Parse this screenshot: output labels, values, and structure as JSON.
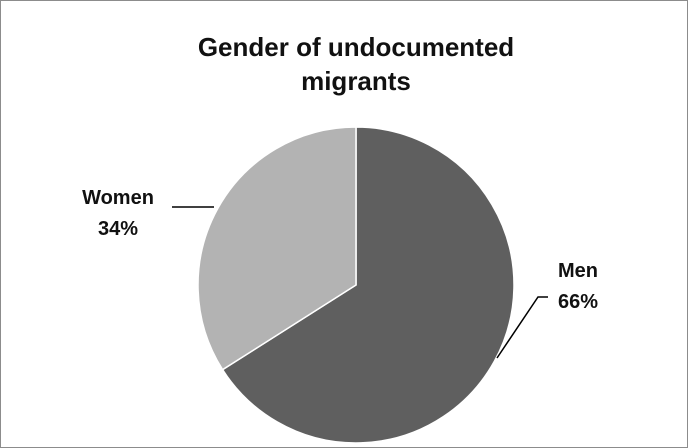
{
  "chart_data": {
    "type": "pie",
    "title_lines": [
      "Gender of undocumented",
      "migrants"
    ],
    "slices": [
      {
        "label": "Men",
        "value": 66,
        "value_text": "66%",
        "color": "#5f5f5f"
      },
      {
        "label": "Women",
        "value": 34,
        "value_text": "34%",
        "color": "#b3b3b3"
      }
    ],
    "start_angle_deg": 0,
    "direction": "clockwise",
    "legend": "none",
    "data_labels": "outside-with-leader-lines",
    "colors": {
      "background": "#ffffff",
      "border": "#8c8c8c",
      "text": "#111111",
      "slice_border": "#ffffff",
      "leader_line": "#000000"
    }
  }
}
